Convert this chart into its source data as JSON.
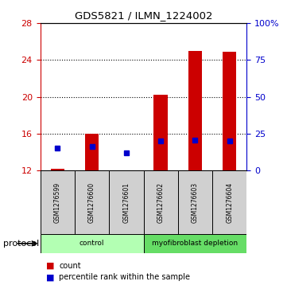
{
  "title": "GDS5821 / ILMN_1224002",
  "samples": [
    "GSM1276599",
    "GSM1276600",
    "GSM1276601",
    "GSM1276602",
    "GSM1276603",
    "GSM1276604"
  ],
  "counts": [
    12.15,
    16.0,
    12.05,
    20.2,
    25.0,
    24.9
  ],
  "percentile_ranks": [
    15.0,
    16.1,
    12.1,
    20.3,
    20.5,
    20.1
  ],
  "ylim_left": [
    12,
    28
  ],
  "ylim_right": [
    0,
    100
  ],
  "yticks_left": [
    12,
    16,
    20,
    24,
    28
  ],
  "yticks_right": [
    0,
    25,
    50,
    75,
    100
  ],
  "ytick_labels_right": [
    "0",
    "25",
    "50",
    "75",
    "100%"
  ],
  "groups": [
    {
      "label": "control",
      "indices": [
        0,
        1,
        2
      ],
      "color": "#b3ffb3"
    },
    {
      "label": "myofibroblast depletion",
      "indices": [
        3,
        4,
        5
      ],
      "color": "#66dd66"
    }
  ],
  "bar_color": "#cc0000",
  "point_color": "#0000cc",
  "bar_width": 0.4,
  "label_count": "count",
  "label_percentile": "percentile rank within the sample",
  "protocol_label": "protocol",
  "sample_box_color": "#d0d0d0",
  "left_axis_color": "#cc0000",
  "right_axis_color": "#0000cc"
}
